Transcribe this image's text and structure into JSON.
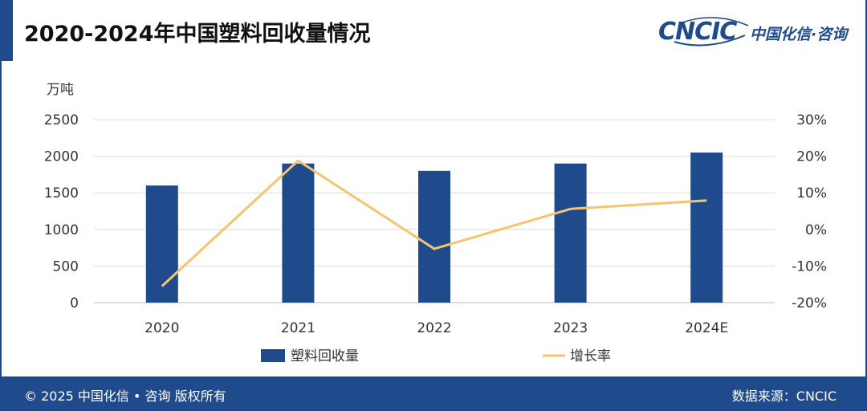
{
  "header": {
    "title": "2020-2024年中国塑料回收量情况",
    "logo_text": "CNCIC",
    "logo_cn": "中国化信·咨询"
  },
  "footer": {
    "copyright": "© 2025 中国化信 • 咨询 版权所有",
    "source": "数据来源：CNCIC"
  },
  "colors": {
    "brand": "#1f4a8c",
    "bar": "#1f4a8c",
    "line": "#f5c56e"
  },
  "chart_data": {
    "type": "bar",
    "categories": [
      "2020",
      "2021",
      "2022",
      "2023",
      "2024E"
    ],
    "ylabel": "万吨",
    "ylim": [
      0,
      2500
    ],
    "yticks": [
      "0",
      "500",
      "1000",
      "1500",
      "2000",
      "2500"
    ],
    "y2lim": [
      -20,
      30
    ],
    "y2ticks": [
      "-20%",
      "-10%",
      "0%",
      "10%",
      "20%",
      "30%"
    ],
    "grid": true,
    "legend_position": "bottom",
    "series": [
      {
        "name": "塑料回收量",
        "type": "bar",
        "axis": "left",
        "values": [
          1600,
          1900,
          1800,
          1900,
          2050
        ]
      },
      {
        "name": "增长率",
        "type": "line",
        "axis": "right",
        "values": [
          -15.5,
          18.8,
          -5.3,
          5.6,
          7.9
        ]
      }
    ]
  }
}
